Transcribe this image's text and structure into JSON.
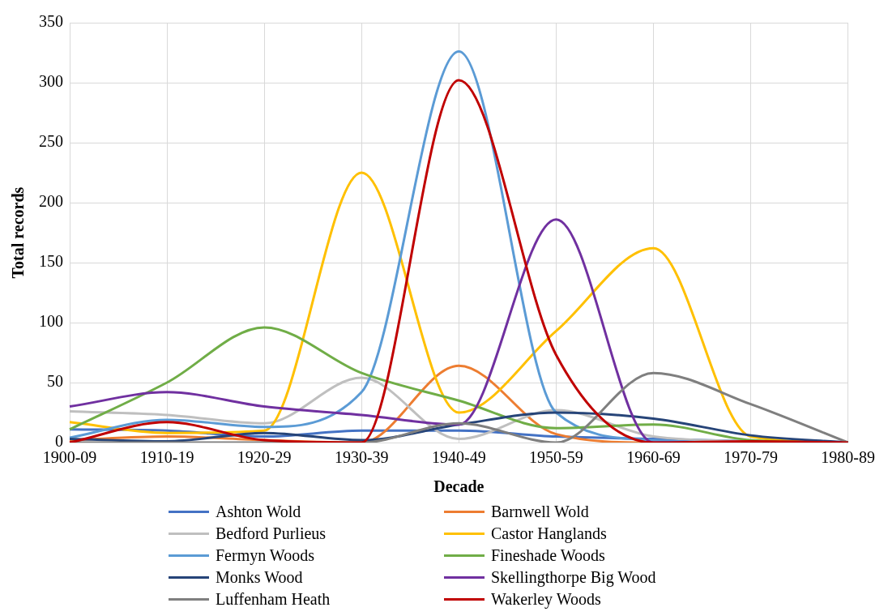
{
  "chart_data": {
    "type": "line",
    "xlabel": "Decade",
    "ylabel": "Total records",
    "categories": [
      "1900-09",
      "1910-19",
      "1920-29",
      "1930-39",
      "1940-49",
      "1950-59",
      "1960-69",
      "1970-79",
      "1980-89"
    ],
    "ylim": [
      0,
      350
    ],
    "yticks": [
      0,
      50,
      100,
      150,
      200,
      250,
      300,
      350
    ],
    "grid": true,
    "legend": "bottom",
    "marker": "none",
    "series": [
      {
        "name": "Ashton Wold",
        "color": "#4472c4",
        "values": [
          11,
          10,
          5,
          10,
          10,
          5,
          3,
          1,
          0
        ]
      },
      {
        "name": "Barnwell Wold",
        "color": "#ed7d31",
        "values": [
          2,
          5,
          2,
          0,
          64,
          7,
          0,
          0,
          0
        ]
      },
      {
        "name": "Bedford Purlieus",
        "color": "#bfbfbf",
        "values": [
          26,
          23,
          16,
          54,
          3,
          27,
          5,
          1,
          0
        ]
      },
      {
        "name": "Castor Hanglands",
        "color": "#ffc000",
        "values": [
          17,
          8,
          10,
          225,
          25,
          93,
          162,
          5,
          0
        ]
      },
      {
        "name": "Fermyn Woods",
        "color": "#5b9bd5",
        "values": [
          4,
          19,
          13,
          42,
          326,
          25,
          2,
          0,
          0
        ]
      },
      {
        "name": "Fineshade Woods",
        "color": "#70ad47",
        "values": [
          11,
          50,
          96,
          58,
          35,
          12,
          15,
          2,
          0
        ]
      },
      {
        "name": "Monks Wood",
        "color": "#264478",
        "values": [
          3,
          1,
          8,
          2,
          15,
          25,
          20,
          6,
          0
        ]
      },
      {
        "name": "Skellingthorpe Big Wood",
        "color": "#7030a0",
        "values": [
          30,
          42,
          30,
          23,
          15,
          186,
          0,
          0,
          0
        ]
      },
      {
        "name": "Luffenham Heath",
        "color": "#7f7f7f",
        "values": [
          0,
          0,
          0,
          0,
          16,
          0,
          58,
          32,
          0
        ]
      },
      {
        "name": "Wakerley Woods",
        "color": "#c00000",
        "values": [
          0,
          17,
          2,
          0,
          302,
          73,
          0,
          1,
          0
        ]
      }
    ]
  }
}
